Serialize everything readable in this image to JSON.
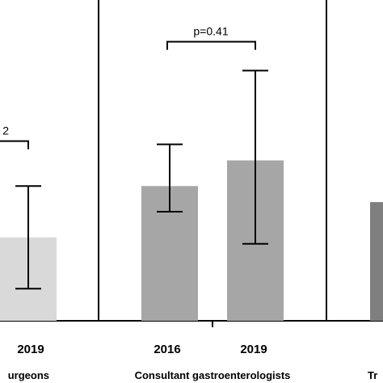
{
  "chart_data": {
    "type": "bar",
    "ylim": [
      0,
      100
    ],
    "grid": false,
    "groups": [
      {
        "name": "urgeons",
        "bars": [
          {
            "category": "2019",
            "value": 26,
            "err_low": 10,
            "err_high": 42,
            "color": "#d9d9d9"
          }
        ],
        "annotation": {
          "label": "2",
          "y": 56
        }
      },
      {
        "name": "Consultant gastroenterologists",
        "bars": [
          {
            "category": "2016",
            "value": 42,
            "err_low": 34,
            "err_high": 55,
            "color": "#a6a6a6"
          },
          {
            "category": "2019",
            "value": 50,
            "err_low": 24,
            "err_high": 78,
            "color": "#a6a6a6"
          }
        ],
        "annotation": {
          "label": "p=0.41",
          "y": 87
        }
      },
      {
        "name": "Tr",
        "bars": [
          {
            "category": "",
            "value": 37,
            "err_low": null,
            "err_high": null,
            "color": "#7f7f7f"
          }
        ],
        "annotation": null
      }
    ]
  }
}
